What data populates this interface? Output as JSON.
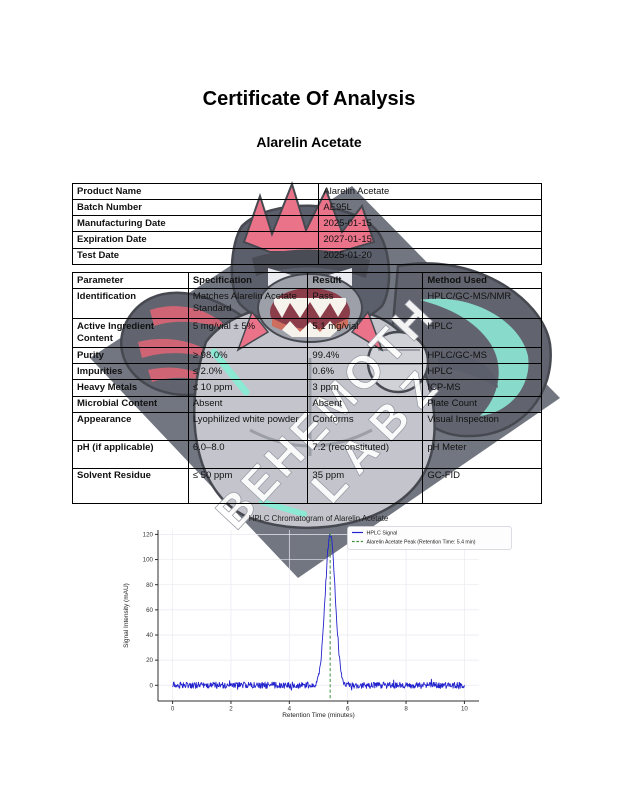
{
  "page": {
    "title": "Certificate Of Analysis",
    "subtitle": "Alarelin Acetate"
  },
  "product_info": {
    "rows": [
      {
        "label": "Product Name",
        "value": "Alarelin Acetate"
      },
      {
        "label": "Batch Number",
        "value": "AE95L"
      },
      {
        "label": "Manufacturing Date",
        "value": "2025-01-15"
      },
      {
        "label": "Expiration Date",
        "value": "2027-01-15"
      },
      {
        "label": "Test Date",
        "value": "2025-01-20"
      }
    ]
  },
  "analysis": {
    "headers": [
      "Parameter",
      "Specification",
      "Result",
      "Method Used"
    ],
    "rows": [
      [
        "Identification",
        "Matches Alarelin Acetate Standard",
        "Pass",
        "HPLC/GC-MS/NMR"
      ],
      [
        "Active Ingredient Content",
        "5 mg/vial ± 5%",
        "5.1 mg/vial",
        "HPLC"
      ],
      [
        "Purity",
        "≥ 98.0%",
        "99.4%",
        "HPLC/GC-MS"
      ],
      [
        "Impurities",
        "≤ 2.0%",
        "0.6%",
        "HPLC"
      ],
      [
        "Heavy Metals",
        "≤ 10 ppm",
        "3 ppm",
        "ICP-MS"
      ],
      [
        "Microbial Content",
        "Absent",
        "Absent",
        "Plate Count"
      ],
      [
        "Appearance",
        "Lyophilized white powder",
        "Conforms",
        "Visual Inspection"
      ],
      [
        "pH (if applicable)",
        "6.0–8.0",
        "7.2 (reconstituted)",
        "pH Meter"
      ],
      [
        "Solvent Residue",
        "≤ 50 ppm",
        "35 ppm",
        "GC-FID"
      ]
    ]
  },
  "watermark": {
    "line1": "BEHEMOTH",
    "line2": "LABZ",
    "colors": {
      "diamond": "#5f646f",
      "body_gray": "#bcbec6",
      "dark_gray": "#454a57",
      "pink": "#e8607a",
      "red": "#c94f62",
      "teal": "#7de6cf",
      "text": "#ffffff"
    }
  },
  "chart_data": {
    "type": "line",
    "title": "HPLC Chromatogram of Alarelin Acetate",
    "xlabel": "Retention Time (minutes)",
    "ylabel": "Signal Intensity (mAU)",
    "xlim": [
      -0.5,
      10.5
    ],
    "ylim": [
      -12.5,
      123.5
    ],
    "xticks": [
      0,
      2,
      4,
      6,
      8,
      10
    ],
    "yticks": [
      0,
      20,
      40,
      60,
      80,
      100,
      120
    ],
    "grid": true,
    "legend_position": "upper right",
    "legend": [
      {
        "label": "HPLC Signal",
        "color": "#2323cd",
        "style": "solid"
      },
      {
        "label": "Alarelin Acetate Peak (Retention Time: 5.4 min)",
        "color": "#3f8f3f",
        "style": "dashed"
      }
    ],
    "series": [
      {
        "name": "HPLC Signal",
        "color": "#2323cd",
        "x_range": [
          0,
          10
        ],
        "n_points": 620,
        "baseline_mau": 0,
        "noise_amplitude_mau": 3,
        "peak": {
          "retention_time_min": 5.4,
          "height_mau": 120,
          "sigma_min": 0.17
        },
        "key_points": [
          {
            "x": 0,
            "y": 0
          },
          {
            "x": 2,
            "y": 0
          },
          {
            "x": 4,
            "y": 0
          },
          {
            "x": 5.4,
            "y": 122
          },
          {
            "x": 6,
            "y": 1
          },
          {
            "x": 8,
            "y": 0
          },
          {
            "x": 10,
            "y": 1
          }
        ]
      }
    ],
    "marker_line": {
      "x": 5.4,
      "color": "#3f8f3f",
      "style": "dashed"
    }
  }
}
